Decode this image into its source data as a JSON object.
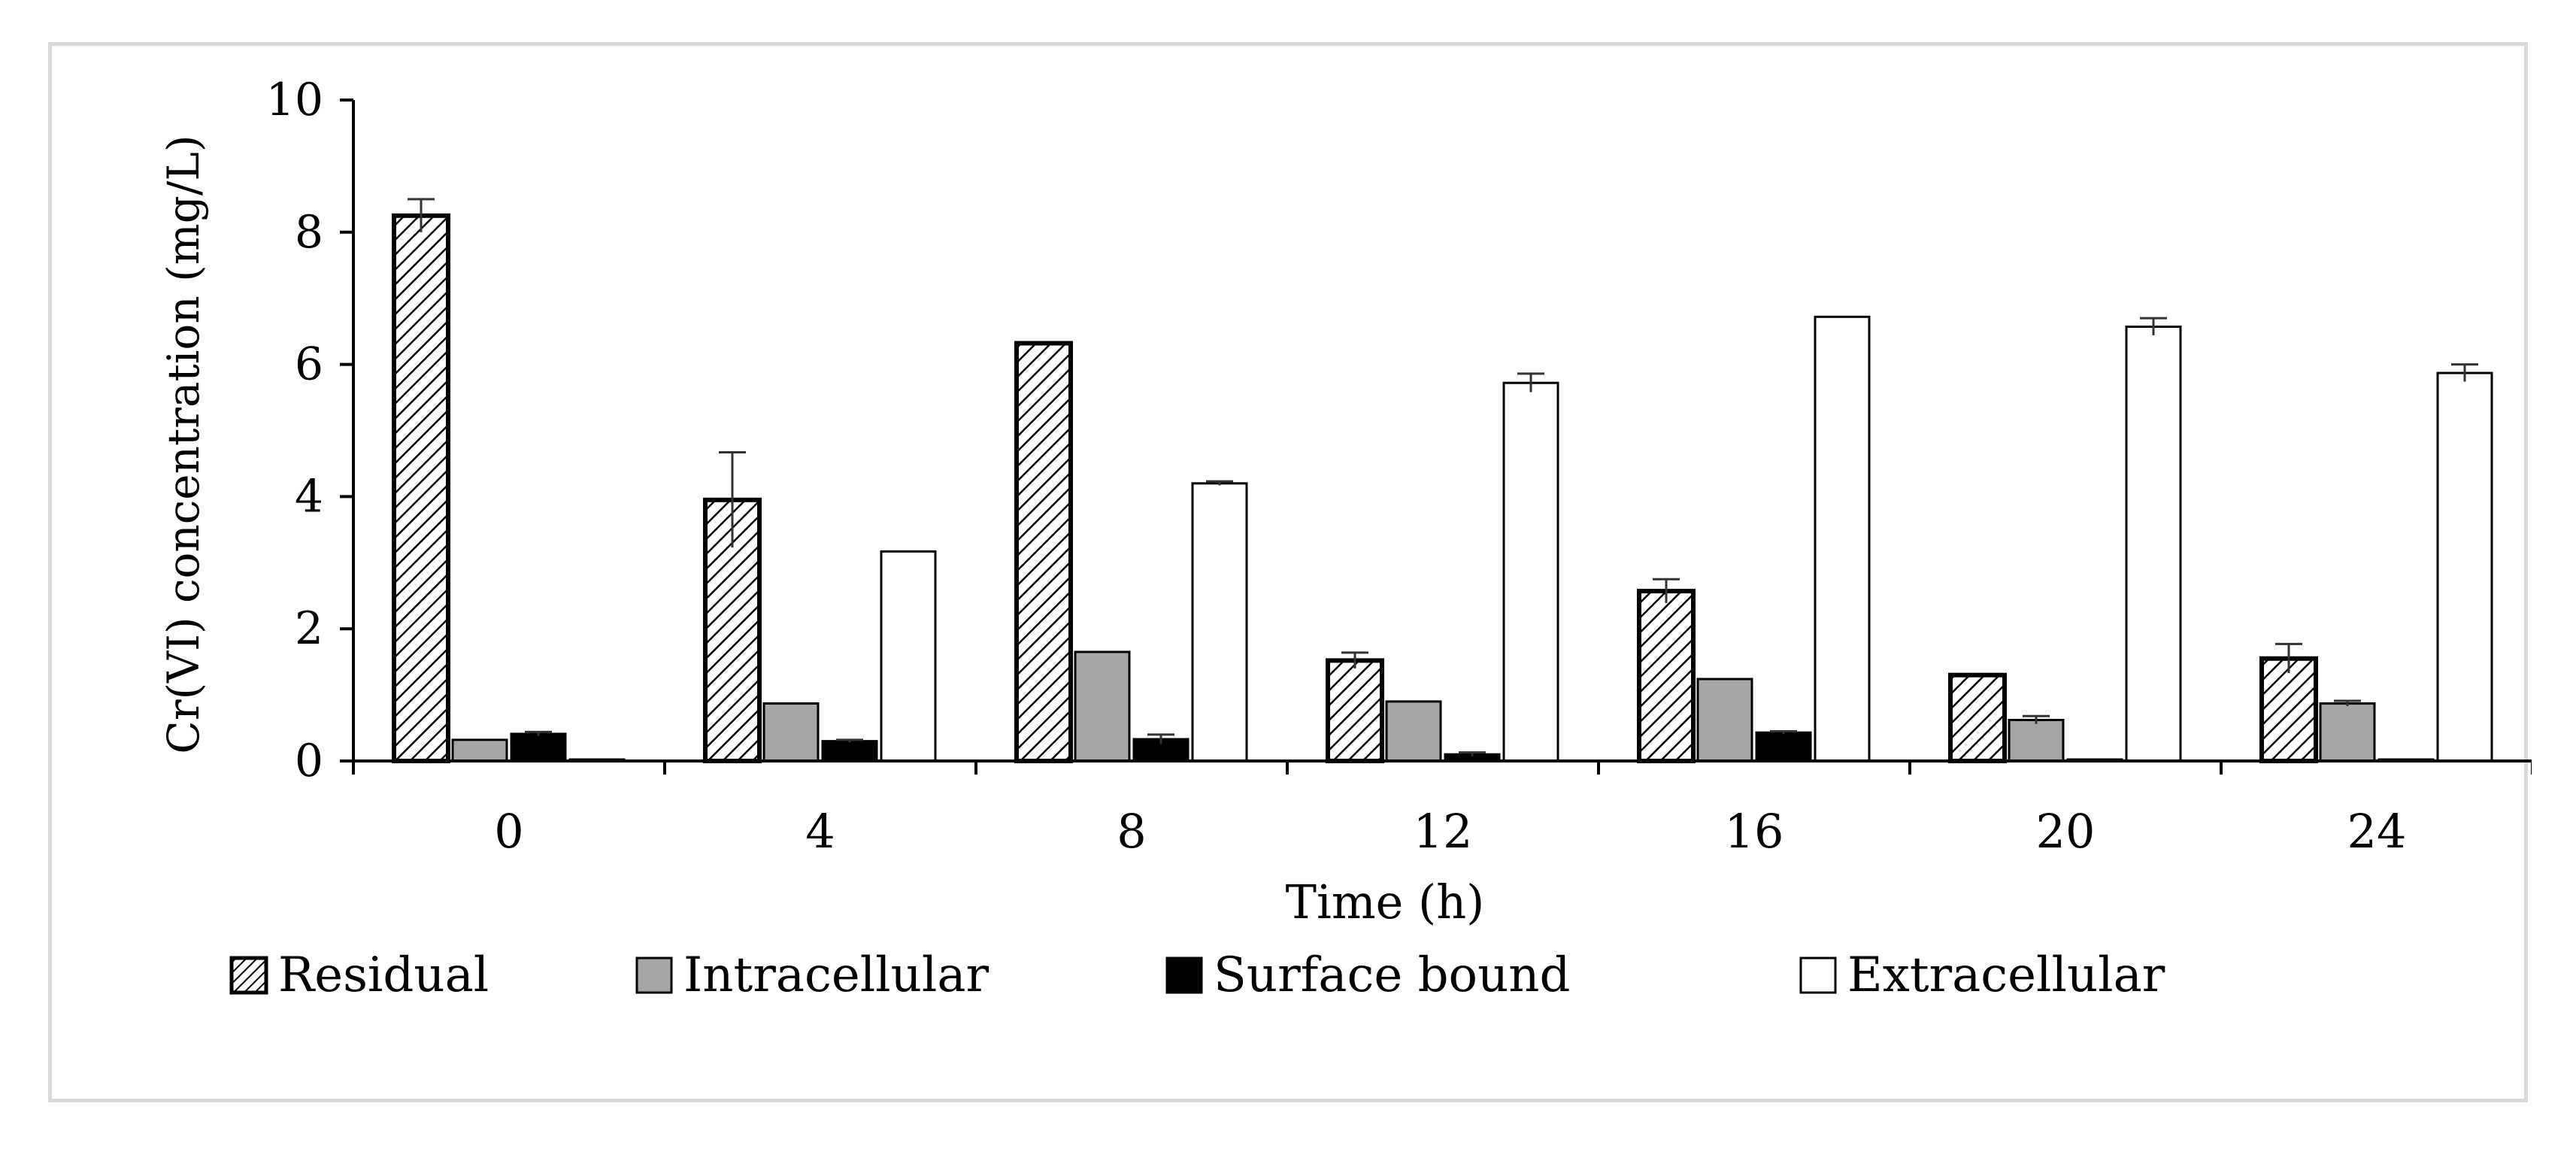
{
  "chart_data": {
    "type": "bar",
    "title": "",
    "xlabel": "Time (h)",
    "ylabel": "Cr(VI) concentration (mg/L)",
    "ylim": [
      0,
      10
    ],
    "yticks": [
      "0",
      "2",
      "4",
      "6",
      "8",
      "10"
    ],
    "categories": [
      "0",
      "4",
      "8",
      "12",
      "16",
      "20",
      "24"
    ],
    "legend_position": "bottom",
    "series": [
      {
        "name": "Residual",
        "style": "hatched",
        "values": [
          8.25,
          3.95,
          6.32,
          1.52,
          2.57,
          1.3,
          1.55
        ],
        "errors": [
          0.25,
          0.72,
          0.0,
          0.12,
          0.18,
          0.0,
          0.22
        ]
      },
      {
        "name": "Intracellular",
        "style": "gray",
        "values": [
          0.32,
          0.87,
          1.65,
          0.9,
          1.24,
          0.62,
          0.87
        ],
        "errors": [
          0.0,
          0.0,
          0.0,
          0.0,
          0.0,
          0.06,
          0.04
        ]
      },
      {
        "name": "Surface bound",
        "style": "black",
        "values": [
          0.41,
          0.3,
          0.33,
          0.1,
          0.43,
          0.02,
          0.02
        ],
        "errors": [
          0.03,
          0.02,
          0.07,
          0.03,
          0.02,
          0.0,
          0.0
        ]
      },
      {
        "name": "Extracellular",
        "style": "white",
        "values": [
          0.02,
          3.17,
          4.2,
          5.72,
          6.72,
          6.57,
          5.87
        ],
        "errors": [
          0.0,
          0.0,
          0.03,
          0.14,
          0.0,
          0.13,
          0.13
        ]
      }
    ]
  },
  "colors": {
    "hatched_line": "#000000",
    "gray": "#a6a6a6",
    "black": "#000000",
    "white": "#ffffff",
    "axis": "#000000"
  }
}
